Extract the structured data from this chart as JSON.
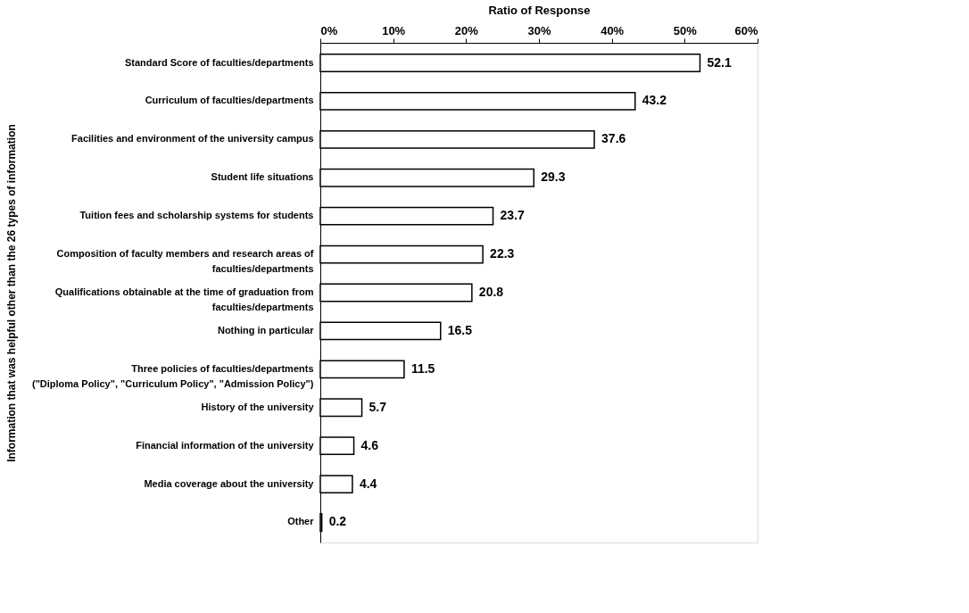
{
  "chart_data": {
    "type": "bar",
    "orientation": "horizontal",
    "xlabel": "Ratio of Response",
    "ylabel": "Information that was helpful other than the 26 types of information",
    "categories": [
      "Standard Score of faculties/departments",
      "Curriculum of faculties/departments",
      "Facilities and environment of the university campus",
      "Student life situations",
      "Tuition fees and scholarship systems for students",
      "Composition of faculty members and research areas of faculties/departments",
      "Qualifications obtainable at the time of graduation from faculties/departments",
      "Nothing in particular",
      "Three policies of faculties/departments (\"Diploma Policy\", \"Curriculum Policy\", \"Admission Policy\")",
      "History of the university",
      "Financial information of the university",
      "Media coverage about the university",
      "Other"
    ],
    "values": [
      52.1,
      43.2,
      37.6,
      29.3,
      23.7,
      22.3,
      20.8,
      16.5,
      11.5,
      5.7,
      4.6,
      4.4,
      0.2
    ],
    "color": "#ffffff",
    "xlim": [
      0,
      60
    ],
    "xticks": [
      {
        "value": 0,
        "label": "0%"
      },
      {
        "value": 10,
        "label": "10%"
      },
      {
        "value": 20,
        "label": "20%"
      },
      {
        "value": 30,
        "label": "30%"
      },
      {
        "value": 40,
        "label": "40%"
      },
      {
        "value": 50,
        "label": "50%"
      },
      {
        "value": 60,
        "label": "60%"
      }
    ],
    "data_labels": true,
    "grid": false
  }
}
